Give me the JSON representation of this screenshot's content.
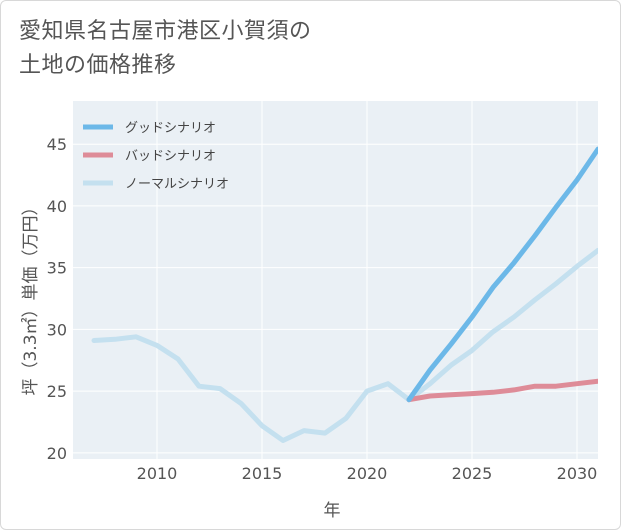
{
  "title_lines": [
    "愛知県名古屋市港区小賀須の",
    "土地の価格推移"
  ],
  "chart_data": {
    "type": "line",
    "xlabel": "年",
    "ylabel": "坪（3.3㎡）単価（万円）",
    "xlim": [
      2006,
      2031
    ],
    "ylim": [
      19.5,
      48.5
    ],
    "x_ticks": [
      2010,
      2015,
      2020,
      2025,
      2030
    ],
    "y_ticks": [
      20,
      25,
      30,
      35,
      40,
      45
    ],
    "grid": true,
    "legend_position": "top-left",
    "series": [
      {
        "name": "グッドシナリオ",
        "color": "#6cb8e8",
        "x": [
          2022,
          2023,
          2024,
          2025,
          2026,
          2027,
          2028,
          2029,
          2030,
          2031
        ],
        "y": [
          24.3,
          26.7,
          28.8,
          31.0,
          33.4,
          35.4,
          37.6,
          39.9,
          42.1,
          44.6
        ]
      },
      {
        "name": "バッドシナリオ",
        "color": "#de8c98",
        "x": [
          2022,
          2023,
          2024,
          2025,
          2026,
          2027,
          2028,
          2029,
          2030,
          2031
        ],
        "y": [
          24.3,
          24.6,
          24.7,
          24.8,
          24.9,
          25.1,
          25.4,
          25.4,
          25.6,
          25.8
        ]
      },
      {
        "name": "ノーマルシナリオ",
        "color": "#c4e0ef",
        "x": [
          2007,
          2008,
          2009,
          2010,
          2011,
          2012,
          2013,
          2014,
          2015,
          2016,
          2017,
          2018,
          2019,
          2020,
          2021,
          2022,
          2023,
          2024,
          2025,
          2026,
          2027,
          2028,
          2029,
          2030,
          2031
        ],
        "y": [
          29.1,
          29.2,
          29.4,
          28.7,
          27.6,
          25.4,
          25.2,
          24.0,
          22.2,
          21.0,
          21.8,
          21.6,
          22.8,
          25.0,
          25.6,
          24.3,
          25.6,
          27.1,
          28.3,
          29.8,
          31.0,
          32.4,
          33.7,
          35.1,
          36.4
        ]
      }
    ]
  }
}
